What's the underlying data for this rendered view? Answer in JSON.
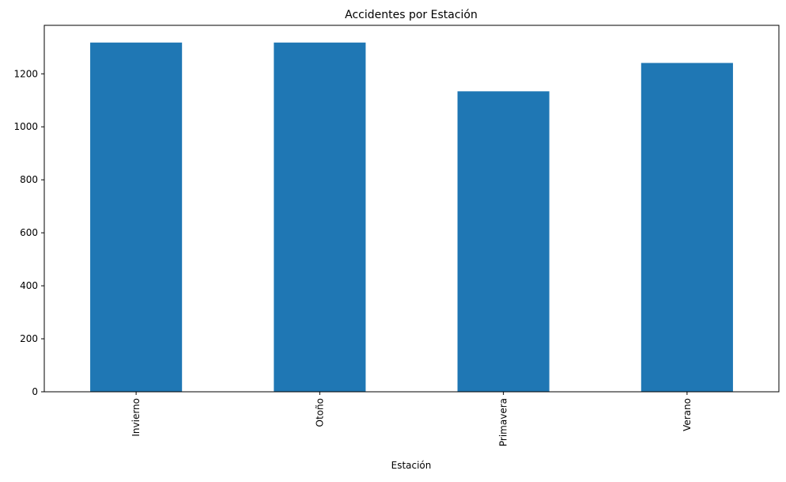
{
  "chart_data": {
    "type": "bar",
    "title": "Accidentes por Estación",
    "xlabel": "Estación",
    "ylabel": "",
    "categories": [
      "Invierno",
      "Otoño",
      "Primavera",
      "Verano"
    ],
    "values": [
      1318,
      1318,
      1134,
      1241
    ],
    "ylim": [
      0,
      1383
    ],
    "yticks": [
      0,
      200,
      400,
      600,
      800,
      1000,
      1200
    ],
    "bar_color": "#1f77b4",
    "grid": false,
    "legend": "none"
  }
}
